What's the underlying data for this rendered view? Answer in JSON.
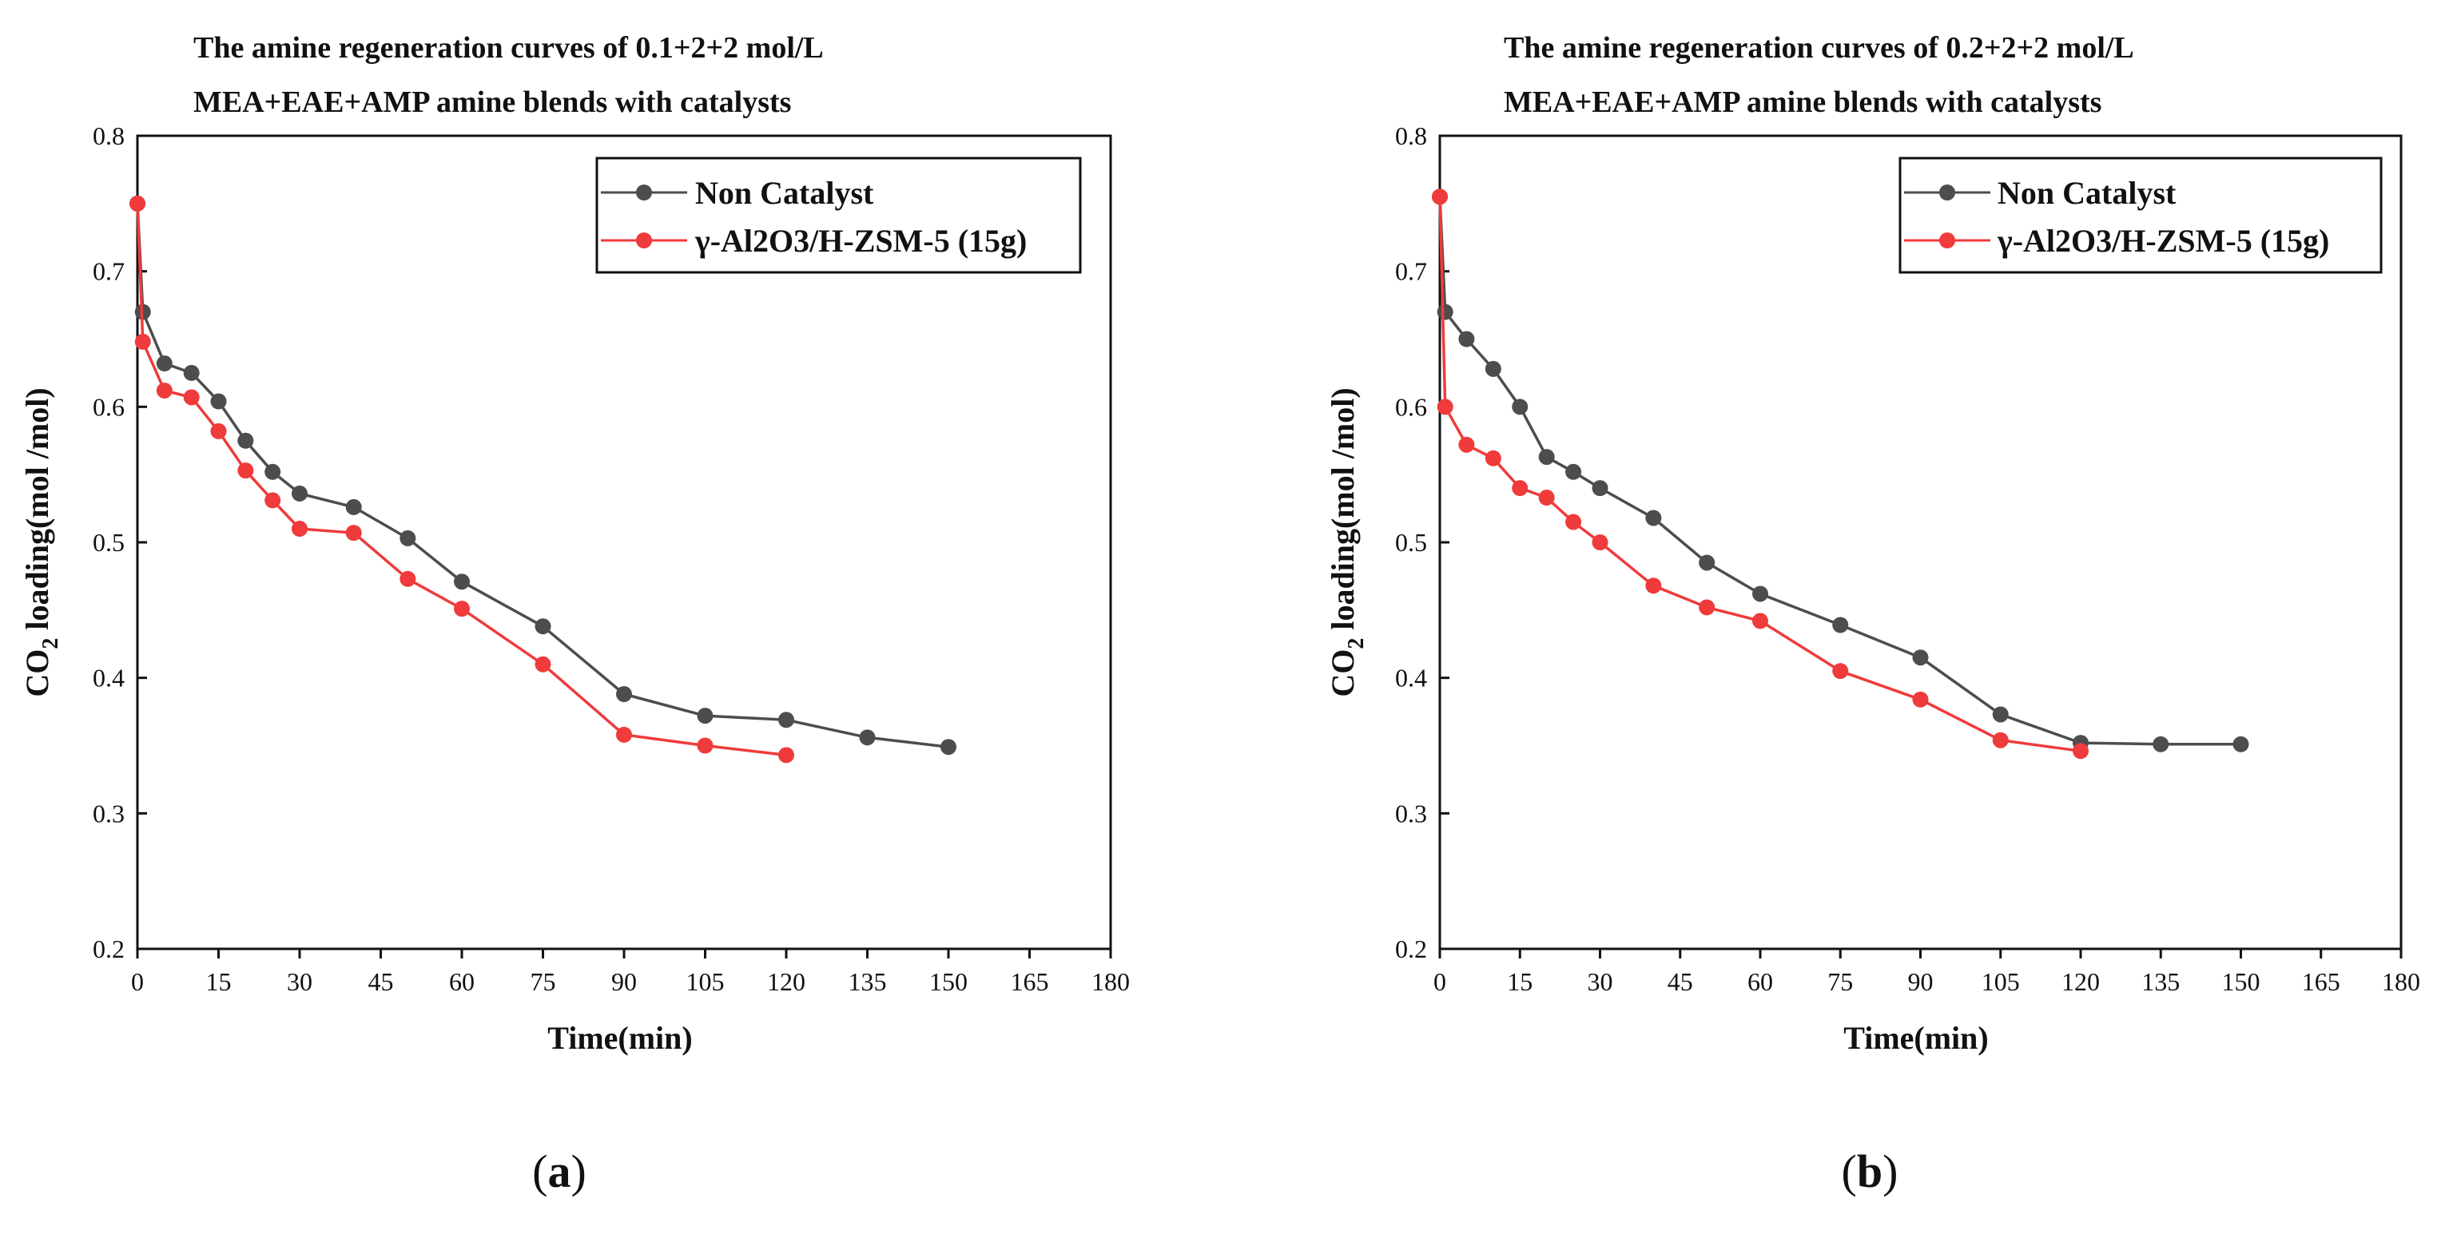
{
  "chart_data": [
    {
      "type": "line",
      "panel": "a",
      "title_lines": [
        "The amine regeneration curves of  0.1+2+2 mol/L",
        "MEA+EAE+AMP amine blends with catalysts"
      ],
      "xlabel": "Time(min)",
      "ylabel_main": "CO",
      "ylabel_sub": "2",
      "ylabel_rest": " loading(mol /mol)",
      "xlim": [
        0,
        180
      ],
      "ylim": [
        0.2,
        0.8
      ],
      "xticks": [
        "0",
        "15",
        "30",
        "45",
        "60",
        "75",
        "90",
        "105",
        "120",
        "135",
        "150",
        "165",
        "180"
      ],
      "yticks": [
        "0.2",
        "0.3",
        "0.4",
        "0.5",
        "0.6",
        "0.7",
        "0.8"
      ],
      "legend_position": "top-right",
      "grid": false,
      "series": [
        {
          "name": "Non Catalyst",
          "color": "#4d4d4d",
          "x": [
            0,
            1,
            5,
            10,
            15,
            20,
            25,
            30,
            40,
            50,
            60,
            75,
            90,
            105,
            120,
            135,
            150
          ],
          "y": [
            0.75,
            0.67,
            0.632,
            0.625,
            0.604,
            0.575,
            0.552,
            0.536,
            0.526,
            0.503,
            0.471,
            0.438,
            0.388,
            0.372,
            0.369,
            0.356,
            0.349
          ]
        },
        {
          "name": "γ-Al2O3/H-ZSM-5 (15g)",
          "color": "#ef3b3b",
          "x": [
            0,
            1,
            5,
            10,
            15,
            20,
            25,
            30,
            40,
            50,
            60,
            75,
            90,
            105,
            120
          ],
          "y": [
            0.75,
            0.648,
            0.612,
            0.607,
            0.582,
            0.553,
            0.531,
            0.51,
            0.507,
            0.473,
            0.451,
            0.41,
            0.358,
            0.35,
            0.343
          ]
        }
      ],
      "panel_label": {
        "open": "(",
        "letter": "a",
        "close": ")"
      }
    },
    {
      "type": "line",
      "panel": "b",
      "title_lines": [
        "The amine regeneration curves of  0.2+2+2 mol/L",
        "MEA+EAE+AMP amine blends with catalysts"
      ],
      "xlabel": "Time(min)",
      "ylabel_main": "CO",
      "ylabel_sub": "2",
      "ylabel_rest": " loading(mol /mol)",
      "xlim": [
        0,
        180
      ],
      "ylim": [
        0.2,
        0.8
      ],
      "xticks": [
        "0",
        "15",
        "30",
        "45",
        "60",
        "75",
        "90",
        "105",
        "120",
        "135",
        "150",
        "165",
        "180"
      ],
      "yticks": [
        "0.2",
        "0.3",
        "0.4",
        "0.5",
        "0.6",
        "0.7",
        "0.8"
      ],
      "legend_position": "top-right",
      "grid": false,
      "series": [
        {
          "name": "Non Catalyst",
          "color": "#4d4d4d",
          "x": [
            0,
            1,
            5,
            10,
            15,
            20,
            25,
            30,
            40,
            50,
            60,
            75,
            90,
            105,
            120,
            135,
            150
          ],
          "y": [
            0.755,
            0.67,
            0.65,
            0.628,
            0.6,
            0.563,
            0.552,
            0.54,
            0.518,
            0.485,
            0.462,
            0.439,
            0.415,
            0.373,
            0.352,
            0.351,
            0.351
          ]
        },
        {
          "name": "γ-Al2O3/H-ZSM-5 (15g)",
          "color": "#ef3b3b",
          "x": [
            0,
            1,
            5,
            10,
            15,
            20,
            25,
            30,
            40,
            50,
            60,
            75,
            90,
            105,
            120
          ],
          "y": [
            0.755,
            0.6,
            0.572,
            0.562,
            0.54,
            0.533,
            0.515,
            0.5,
            0.468,
            0.452,
            0.442,
            0.405,
            0.384,
            0.354,
            0.346
          ]
        }
      ],
      "panel_label": {
        "open": "(",
        "letter": "b",
        "close": ")"
      }
    }
  ]
}
